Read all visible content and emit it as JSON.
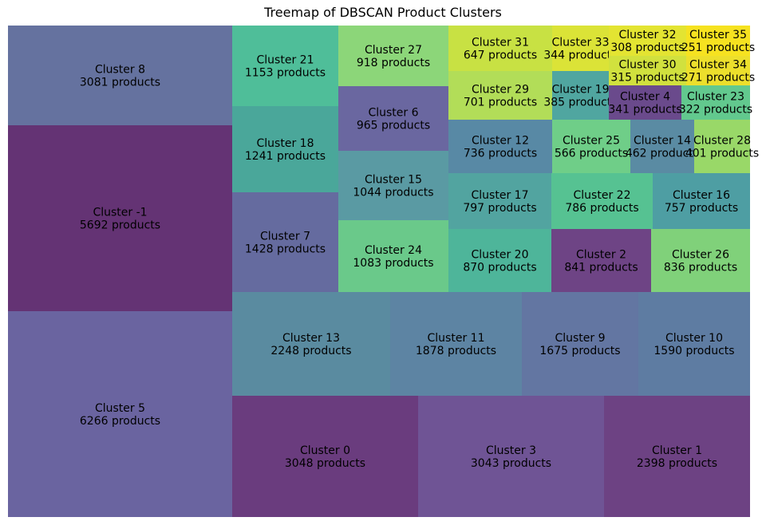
{
  "chart_data": {
    "type": "treemap",
    "title": "Treemap of DBSCAN Product Clusters",
    "unit_label": "products",
    "items": [
      {
        "label": "Cluster 5",
        "value": 6266,
        "color": "#6a64a0"
      },
      {
        "label": "Cluster -1",
        "value": 5692,
        "color": "#643374"
      },
      {
        "label": "Cluster 8",
        "value": 3081,
        "color": "#65729f"
      },
      {
        "label": "Cluster 0",
        "value": 3048,
        "color": "#6a3c7e"
      },
      {
        "label": "Cluster 3",
        "value": 3043,
        "color": "#6f5495"
      },
      {
        "label": "Cluster 1",
        "value": 2398,
        "color": "#6d4283"
      },
      {
        "label": "Cluster 13",
        "value": 2248,
        "color": "#5a8ba0"
      },
      {
        "label": "Cluster 11",
        "value": 1878,
        "color": "#5d84a3"
      },
      {
        "label": "Cluster 9",
        "value": 1675,
        "color": "#6376a2"
      },
      {
        "label": "Cluster 10",
        "value": 1590,
        "color": "#5e7ca2"
      },
      {
        "label": "Cluster 7",
        "value": 1428,
        "color": "#656b9f"
      },
      {
        "label": "Cluster 18",
        "value": 1241,
        "color": "#4aa79a"
      },
      {
        "label": "Cluster 21",
        "value": 1153,
        "color": "#4fbe99"
      },
      {
        "label": "Cluster 24",
        "value": 1083,
        "color": "#6ac98a"
      },
      {
        "label": "Cluster 15",
        "value": 1044,
        "color": "#5a9aa3"
      },
      {
        "label": "Cluster 6",
        "value": 965,
        "color": "#6a67a0"
      },
      {
        "label": "Cluster 27",
        "value": 918,
        "color": "#8cd679"
      },
      {
        "label": "Cluster 20",
        "value": 870,
        "color": "#4eb59a"
      },
      {
        "label": "Cluster 2",
        "value": 841,
        "color": "#6e4485"
      },
      {
        "label": "Cluster 26",
        "value": 836,
        "color": "#80d17a"
      },
      {
        "label": "Cluster 17",
        "value": 797,
        "color": "#52a4a0"
      },
      {
        "label": "Cluster 22",
        "value": 786,
        "color": "#56c292"
      },
      {
        "label": "Cluster 16",
        "value": 757,
        "color": "#4e9ea3"
      },
      {
        "label": "Cluster 12",
        "value": 736,
        "color": "#5889a5"
      },
      {
        "label": "Cluster 29",
        "value": 701,
        "color": "#b2dd58"
      },
      {
        "label": "Cluster 31",
        "value": 647,
        "color": "#c8e143"
      },
      {
        "label": "Cluster 25",
        "value": 566,
        "color": "#6fce88"
      },
      {
        "label": "Cluster 14",
        "value": 462,
        "color": "#5a8ba3"
      },
      {
        "label": "Cluster 28",
        "value": 401,
        "color": "#99d868"
      },
      {
        "label": "Cluster 19",
        "value": 385,
        "color": "#50a6a0"
      },
      {
        "label": "Cluster 33",
        "value": 344,
        "color": "#dbe337"
      },
      {
        "label": "Cluster 4",
        "value": 341,
        "color": "#6a4a8c"
      },
      {
        "label": "Cluster 23",
        "value": 322,
        "color": "#62c98e"
      },
      {
        "label": "Cluster 30",
        "value": 315,
        "color": "#d1e13e"
      },
      {
        "label": "Cluster 32",
        "value": 308,
        "color": "#e3e432"
      },
      {
        "label": "Cluster 34",
        "value": 271,
        "color": "#ecdf2c"
      },
      {
        "label": "Cluster 35",
        "value": 251,
        "color": "#f6e220"
      }
    ]
  }
}
